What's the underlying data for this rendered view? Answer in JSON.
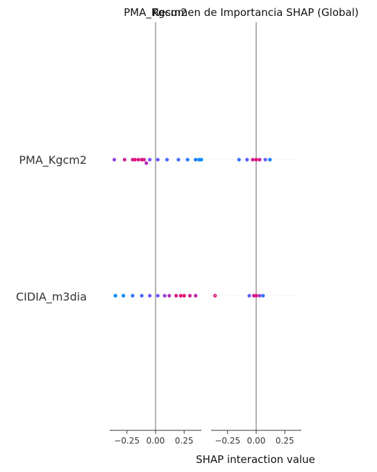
{
  "chart_data": {
    "type": "scatter",
    "subtype": "shap-interaction-beeswarm",
    "titles": [
      "PMA_Kgcm2",
      "Resumen de Importancia SHAP (Global)"
    ],
    "xlabel": "SHAP interaction value",
    "features": [
      "PMA_Kgcm2",
      "CIDIA_m3dia"
    ],
    "xlim": [
      -0.4,
      0.4
    ],
    "xticks": [
      -0.25,
      0.0,
      0.25
    ],
    "xtick_labels": [
      "−0.25",
      "0.00",
      "0.25"
    ],
    "color_low": "#008bfb",
    "color_high": "#ff0052",
    "panels": [
      {
        "column": "PMA_Kgcm2",
        "rows": [
          {
            "feature": "PMA_Kgcm2",
            "points": [
              {
                "x": -0.36,
                "c": 0.6
              },
              {
                "x": -0.27,
                "c": 0.8
              },
              {
                "x": -0.2,
                "c": 0.8
              },
              {
                "x": -0.18,
                "c": 0.9
              },
              {
                "x": -0.15,
                "c": 0.85
              },
              {
                "x": -0.12,
                "c": 0.9
              },
              {
                "x": -0.1,
                "c": 0.8
              },
              {
                "x": -0.08,
                "c": 0.7
              },
              {
                "x": -0.05,
                "c": 0.5
              },
              {
                "x": 0.02,
                "c": 0.4
              },
              {
                "x": 0.1,
                "c": 0.3
              },
              {
                "x": 0.2,
                "c": 0.25
              },
              {
                "x": 0.28,
                "c": 0.15
              },
              {
                "x": 0.35,
                "c": 0.1
              },
              {
                "x": 0.38,
                "c": 0.05
              },
              {
                "x": 0.4,
                "c": 0.0
              }
            ]
          },
          {
            "feature": "CIDIA_m3dia",
            "points": [
              {
                "x": -0.35,
                "c": 0.0
              },
              {
                "x": -0.28,
                "c": 0.05
              },
              {
                "x": -0.2,
                "c": 0.2
              },
              {
                "x": -0.12,
                "c": 0.3
              },
              {
                "x": -0.05,
                "c": 0.45
              },
              {
                "x": 0.02,
                "c": 0.5
              },
              {
                "x": 0.08,
                "c": 0.6
              },
              {
                "x": 0.12,
                "c": 0.7
              },
              {
                "x": 0.18,
                "c": 0.85
              },
              {
                "x": 0.22,
                "c": 0.9
              },
              {
                "x": 0.25,
                "c": 0.9
              },
              {
                "x": 0.3,
                "c": 0.8
              },
              {
                "x": 0.35,
                "c": 0.75
              },
              {
                "x": 0.52,
                "c": 0.9
              }
            ]
          }
        ]
      },
      {
        "column": "CIDIA_m3dia",
        "rows": [
          {
            "feature": "PMA_Kgcm2",
            "points": [
              {
                "x": -0.15,
                "c": 0.2
              },
              {
                "x": -0.08,
                "c": 0.4
              },
              {
                "x": -0.03,
                "c": 0.8
              },
              {
                "x": 0.0,
                "c": 0.9
              },
              {
                "x": 0.03,
                "c": 0.8
              },
              {
                "x": 0.08,
                "c": 0.4
              },
              {
                "x": 0.12,
                "c": 0.1
              }
            ]
          },
          {
            "feature": "CIDIA_m3dia",
            "points": [
              {
                "x": -0.06,
                "c": 0.4
              },
              {
                "x": -0.02,
                "c": 0.8
              },
              {
                "x": 0.0,
                "c": 0.9
              },
              {
                "x": 0.03,
                "c": 0.6
              },
              {
                "x": 0.06,
                "c": 0.2
              }
            ]
          }
        ]
      }
    ]
  }
}
